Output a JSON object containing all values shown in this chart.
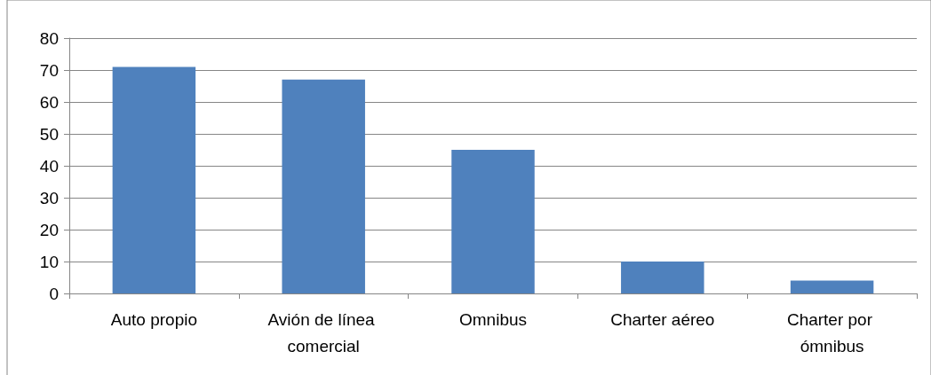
{
  "chart_data": {
    "type": "bar",
    "categories": [
      "Auto propio",
      "Avión de línea comercial",
      "Omnibus",
      "Charter aéreo",
      "Charter por ómnibus"
    ],
    "values": [
      71,
      67,
      45,
      10,
      4
    ],
    "color": "#4f81bd",
    "ylim": [
      0,
      80
    ],
    "yticks": [
      0,
      10,
      20,
      30,
      40,
      50,
      60,
      70,
      80
    ],
    "grid": "y"
  }
}
